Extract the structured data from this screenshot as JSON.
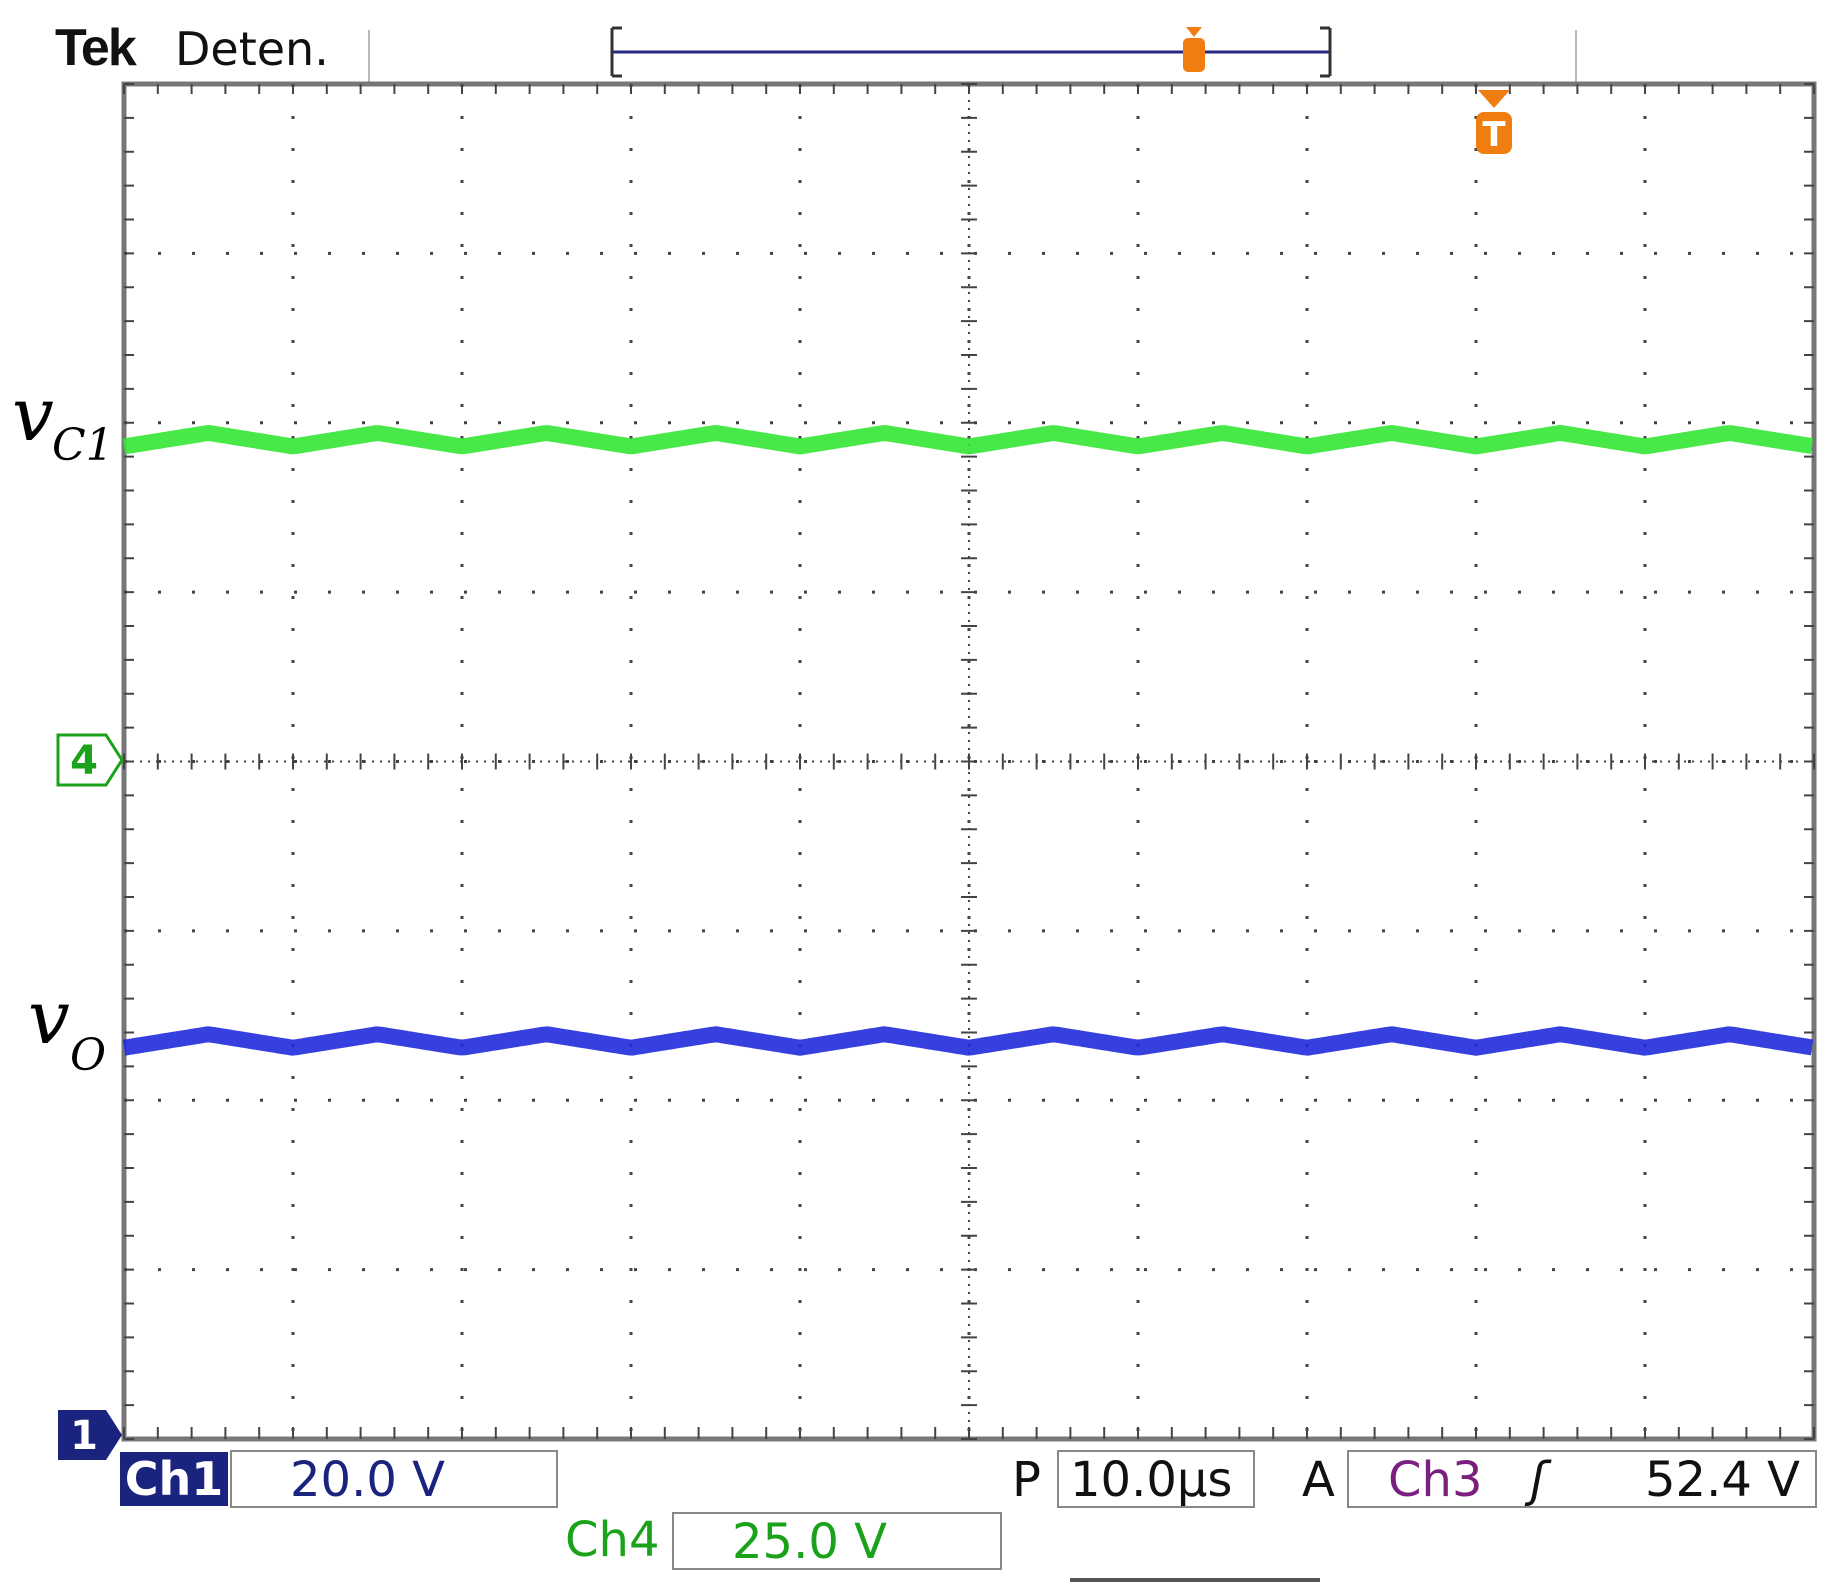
{
  "header": {
    "brand": "Tek",
    "status": "Deten."
  },
  "trace_labels": {
    "vc1_main": "v",
    "vc1_sub": "C1",
    "vo_main": "v",
    "vo_sub": "O"
  },
  "markers": {
    "ch4_marker": "4",
    "ch1_marker": "1",
    "trigger_marker": "T"
  },
  "readouts": {
    "ch1_tag": "Ch1",
    "ch1_scale": "20.0 V",
    "ch4_tag": "Ch4",
    "ch4_scale": "25.0 V",
    "time_prefix": "P",
    "time_scale": "10.0µs",
    "trigger_prefix": "A",
    "trigger_source": "Ch3",
    "trigger_slope": "ʃ",
    "trigger_level": "52.4 V"
  },
  "colors": {
    "ch1": "#1a237e",
    "ch1_trace": "#1f2bdc",
    "ch4_trace": "#35e635",
    "ch4": "#1aa31a",
    "trigger": "#f07d10",
    "ch3": "#7b1f7f",
    "grid": "#444444"
  },
  "chart_data": {
    "type": "line",
    "grid": true,
    "x_divisions": 10,
    "y_divisions": 8,
    "x_scale_per_div": "10.0µs",
    "series": [
      {
        "channel": "Ch4",
        "volts_per_div": "25.0 V",
        "mean_div_above_ch4_ref": 1.9,
        "ripple_period_div": 1.0,
        "ripple_pp_div": 0.08
      },
      {
        "channel": "Ch1",
        "volts_per_div": "20.0 V",
        "mean_div_above_ch1_ref": 2.35,
        "ripple_period_div": 1.0,
        "ripple_pp_div": 0.08
      }
    ],
    "ch1_ref_div_from_top": 8,
    "ch4_ref_div_from_top": 4,
    "trigger_level": "52.4 V"
  }
}
